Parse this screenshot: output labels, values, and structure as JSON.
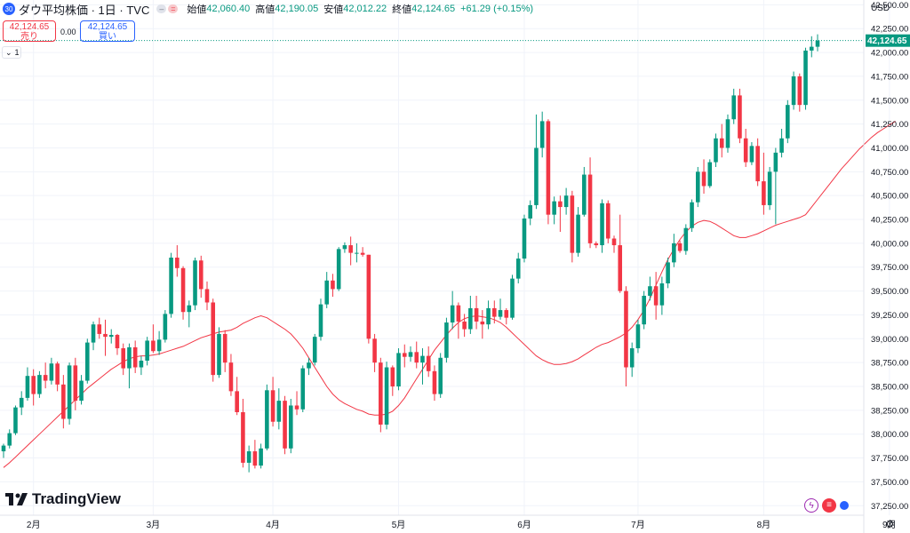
{
  "header": {
    "symbol_badge": "30",
    "title": "ダウ平均株価 · 1日 · TVC",
    "open_label": "始値",
    "open": "42,060.40",
    "high_label": "高値",
    "high": "42,190.05",
    "low_label": "安値",
    "low": "42,012.22",
    "close_label": "終値",
    "close": "42,124.65",
    "change": "+61.29 (+0.15%)"
  },
  "trade": {
    "sell_price": "42,124.65",
    "sell_label": "売り",
    "spread": "0.00",
    "buy_price": "42,124.65",
    "buy_label": "買い"
  },
  "indicator_toggle": "1",
  "currency": "USD",
  "logo_text": "TradingView",
  "colors": {
    "up": "#089981",
    "down": "#f23645",
    "ma": "#f23645",
    "grid": "#f0f3fa"
  },
  "chart_data": {
    "type": "candlestick",
    "ylim": [
      37150,
      42550
    ],
    "y_ticks": [
      "42,500.00",
      "42,250.00",
      "42,000.00",
      "41,750.00",
      "41,500.00",
      "41,250.00",
      "41,000.00",
      "40,750.00",
      "40,500.00",
      "40,250.00",
      "40,000.00",
      "39,750.00",
      "39,500.00",
      "39,250.00",
      "39,000.00",
      "38,750.00",
      "38,500.00",
      "38,250.00",
      "38,000.00",
      "37,750.00",
      "37,500.00",
      "37,250.00"
    ],
    "y_tick_values": [
      42500,
      42250,
      42000,
      41750,
      41500,
      41250,
      41000,
      40750,
      40500,
      40250,
      40000,
      39750,
      39500,
      39250,
      39000,
      38750,
      38500,
      38250,
      38000,
      37750,
      37500,
      37250
    ],
    "x_ticks": [
      "2月",
      "3月",
      "4月",
      "5月",
      "6月",
      "7月",
      "8月",
      "9月",
      "10月"
    ],
    "x_tick_index": [
      5,
      25,
      45,
      66,
      87,
      106,
      127,
      148,
      168
    ],
    "last_price_label": "42,124.65",
    "last_price": 42124.65,
    "moving_average": [
      37650,
      37700,
      37760,
      37820,
      37880,
      37940,
      38000,
      38060,
      38120,
      38180,
      38240,
      38300,
      38360,
      38420,
      38480,
      38530,
      38580,
      38630,
      38680,
      38720,
      38760,
      38790,
      38810,
      38820,
      38820,
      38830,
      38840,
      38860,
      38880,
      38900,
      38920,
      38950,
      38980,
      39010,
      39030,
      39050,
      39070,
      39080,
      39090,
      39120,
      39160,
      39190,
      39220,
      39240,
      39220,
      39180,
      39140,
      39100,
      39050,
      38980,
      38900,
      38800,
      38700,
      38600,
      38500,
      38420,
      38360,
      38320,
      38290,
      38260,
      38240,
      38210,
      38200,
      38200,
      38210,
      38240,
      38300,
      38380,
      38480,
      38580,
      38680,
      38780,
      38880,
      38960,
      39040,
      39110,
      39170,
      39210,
      39230,
      39240,
      39230,
      39220,
      39200,
      39170,
      39120,
      39060,
      39000,
      38940,
      38880,
      38820,
      38780,
      38750,
      38730,
      38730,
      38740,
      38760,
      38790,
      38830,
      38870,
      38910,
      38940,
      38960,
      38990,
      39020,
      39060,
      39120,
      39200,
      39300,
      39420,
      39560,
      39700,
      39830,
      39940,
      40040,
      40120,
      40180,
      40220,
      40240,
      40230,
      40200,
      40160,
      40120,
      40080,
      40060,
      40060,
      40080,
      40100,
      40130,
      40160,
      40190,
      40210,
      40230,
      40250,
      40270,
      40300,
      40380,
      40460,
      40540,
      40620,
      40700,
      40780,
      40850,
      40920,
      40990,
      41050,
      41110,
      41160,
      41200,
      41240,
      41280
    ],
    "candles": [
      [
        37820,
        37900,
        37750,
        37880
      ],
      [
        37880,
        38050,
        37850,
        38010
      ],
      [
        38010,
        38300,
        37990,
        38280
      ],
      [
        38280,
        38450,
        38200,
        38380
      ],
      [
        38380,
        38700,
        38350,
        38610
      ],
      [
        38610,
        38680,
        38300,
        38420
      ],
      [
        38420,
        38660,
        38380,
        38620
      ],
      [
        38620,
        38750,
        38480,
        38560
      ],
      [
        38560,
        38800,
        38520,
        38740
      ],
      [
        38740,
        38760,
        38450,
        38520
      ],
      [
        38520,
        38620,
        38060,
        38160
      ],
      [
        38160,
        38750,
        38100,
        38720
      ],
      [
        38720,
        38800,
        38250,
        38350
      ],
      [
        38350,
        38620,
        38310,
        38560
      ],
      [
        38560,
        39000,
        38530,
        38960
      ],
      [
        38960,
        39180,
        38880,
        39150
      ],
      [
        39150,
        39220,
        39000,
        39050
      ],
      [
        39050,
        39200,
        38820,
        39020
      ],
      [
        39020,
        39100,
        38950,
        39040
      ],
      [
        39040,
        39050,
        38830,
        38900
      ],
      [
        38900,
        38950,
        38620,
        38690
      ],
      [
        38690,
        38950,
        38480,
        38910
      ],
      [
        38910,
        38980,
        38640,
        38700
      ],
      [
        38700,
        38820,
        38620,
        38770
      ],
      [
        38770,
        39020,
        38720,
        38980
      ],
      [
        38980,
        39150,
        38850,
        38870
      ],
      [
        38870,
        39080,
        38830,
        38990
      ],
      [
        38990,
        39300,
        38960,
        39260
      ],
      [
        39260,
        39900,
        39220,
        39850
      ],
      [
        39850,
        39980,
        39650,
        39740
      ],
      [
        39740,
        39760,
        39200,
        39280
      ],
      [
        39280,
        39400,
        39120,
        39350
      ],
      [
        39350,
        39850,
        39300,
        39820
      ],
      [
        39820,
        39870,
        39430,
        39520
      ],
      [
        39520,
        39600,
        39300,
        39380
      ],
      [
        39380,
        39420,
        38550,
        38620
      ],
      [
        38620,
        39120,
        38590,
        39050
      ],
      [
        39050,
        39090,
        38650,
        38750
      ],
      [
        38750,
        38840,
        38400,
        38450
      ],
      [
        38450,
        38600,
        38200,
        38230
      ],
      [
        38230,
        38370,
        37650,
        37700
      ],
      [
        37700,
        37880,
        37600,
        37820
      ],
      [
        37820,
        37940,
        37640,
        37670
      ],
      [
        37670,
        37900,
        37640,
        37850
      ],
      [
        37850,
        38520,
        37830,
        38460
      ],
      [
        38460,
        38600,
        38080,
        38130
      ],
      [
        38130,
        38480,
        38050,
        38350
      ],
      [
        38350,
        38400,
        37790,
        37850
      ],
      [
        37850,
        38370,
        37800,
        38300
      ],
      [
        38300,
        38450,
        38200,
        38260
      ],
      [
        38260,
        38720,
        38230,
        38690
      ],
      [
        38690,
        38800,
        38620,
        38750
      ],
      [
        38750,
        39050,
        38720,
        39020
      ],
      [
        39020,
        39420,
        38980,
        39360
      ],
      [
        39360,
        39700,
        39320,
        39610
      ],
      [
        39610,
        39680,
        39440,
        39520
      ],
      [
        39520,
        39960,
        39500,
        39940
      ],
      [
        39940,
        40010,
        39900,
        39980
      ],
      [
        39980,
        40070,
        39770,
        39900
      ],
      [
        39900,
        40000,
        39800,
        39900
      ],
      [
        39900,
        39960,
        39860,
        39880
      ],
      [
        39880,
        39880,
        38950,
        39000
      ],
      [
        39000,
        39050,
        38650,
        38750
      ],
      [
        38750,
        38800,
        38020,
        38100
      ],
      [
        38100,
        38760,
        38050,
        38700
      ],
      [
        38700,
        38720,
        38400,
        38500
      ],
      [
        38500,
        38900,
        38460,
        38850
      ],
      [
        38850,
        38940,
        38700,
        38810
      ],
      [
        38810,
        38920,
        38760,
        38860
      ],
      [
        38860,
        38970,
        38690,
        38750
      ],
      [
        38750,
        38900,
        38520,
        38820
      ],
      [
        38820,
        38920,
        38600,
        38660
      ],
      [
        38660,
        38720,
        38350,
        38420
      ],
      [
        38420,
        38850,
        38380,
        38800
      ],
      [
        38800,
        39220,
        38750,
        39170
      ],
      [
        39170,
        39500,
        39100,
        39350
      ],
      [
        39350,
        39380,
        39000,
        39180
      ],
      [
        39180,
        39260,
        39020,
        39100
      ],
      [
        39100,
        39450,
        39050,
        39320
      ],
      [
        39320,
        39450,
        39100,
        39180
      ],
      [
        39180,
        39300,
        39000,
        39150
      ],
      [
        39150,
        39400,
        39100,
        39320
      ],
      [
        39320,
        39400,
        39160,
        39230
      ],
      [
        39230,
        39420,
        39200,
        39300
      ],
      [
        39300,
        39320,
        39150,
        39220
      ],
      [
        39220,
        39670,
        39200,
        39630
      ],
      [
        39630,
        39900,
        39580,
        39840
      ],
      [
        39840,
        40300,
        39800,
        40260
      ],
      [
        40260,
        40450,
        40190,
        40400
      ],
      [
        40400,
        41350,
        40360,
        41000
      ],
      [
        41000,
        41380,
        40900,
        41280
      ],
      [
        41280,
        41300,
        40200,
        40300
      ],
      [
        40300,
        40490,
        40200,
        40440
      ],
      [
        40440,
        40500,
        40120,
        40380
      ],
      [
        40380,
        40580,
        40300,
        40500
      ],
      [
        40500,
        40550,
        39800,
        39900
      ],
      [
        39900,
        40380,
        39860,
        40300
      ],
      [
        40300,
        40800,
        40280,
        40720
      ],
      [
        40720,
        40900,
        39950,
        40000
      ],
      [
        40000,
        40020,
        39950,
        39980
      ],
      [
        39980,
        40460,
        39900,
        40420
      ],
      [
        40420,
        40450,
        40000,
        40050
      ],
      [
        40050,
        40080,
        39900,
        39980
      ],
      [
        39980,
        40300,
        39480,
        39500
      ],
      [
        39500,
        39550,
        38500,
        38700
      ],
      [
        38700,
        38960,
        38600,
        38900
      ],
      [
        38900,
        39200,
        38850,
        39150
      ],
      [
        39150,
        39500,
        39100,
        39450
      ],
      [
        39450,
        39650,
        39400,
        39550
      ],
      [
        39550,
        39700,
        39200,
        39350
      ],
      [
        39350,
        39650,
        39250,
        39580
      ],
      [
        39580,
        39850,
        39530,
        39800
      ],
      [
        39800,
        40100,
        39750,
        40000
      ],
      [
        40000,
        40030,
        39900,
        39920
      ],
      [
        39920,
        40200,
        39880,
        40160
      ],
      [
        40160,
        40460,
        40120,
        40430
      ],
      [
        40430,
        40800,
        40380,
        40750
      ],
      [
        40750,
        40880,
        40520,
        40600
      ],
      [
        40600,
        40880,
        40580,
        40850
      ],
      [
        40850,
        41150,
        40800,
        41100
      ],
      [
        41100,
        41250,
        40900,
        41000
      ],
      [
        41000,
        41350,
        40950,
        41300
      ],
      [
        41300,
        41620,
        41250,
        41550
      ],
      [
        41550,
        41620,
        41050,
        41100
      ],
      [
        41100,
        41200,
        40800,
        40850
      ],
      [
        40850,
        41060,
        40820,
        41020
      ],
      [
        41020,
        41100,
        40600,
        40650
      ],
      [
        40650,
        40950,
        40300,
        40400
      ],
      [
        40400,
        40800,
        40350,
        40750
      ],
      [
        40750,
        41000,
        40200,
        40950
      ],
      [
        40950,
        41200,
        40900,
        41100
      ],
      [
        41100,
        41500,
        41050,
        41450
      ],
      [
        41450,
        41800,
        41400,
        41750
      ],
      [
        41750,
        41780,
        41380,
        41450
      ],
      [
        41450,
        42050,
        41400,
        42020
      ],
      [
        42020,
        42170,
        41950,
        42060
      ],
      [
        42060,
        42190,
        42012,
        42124.65
      ]
    ]
  }
}
